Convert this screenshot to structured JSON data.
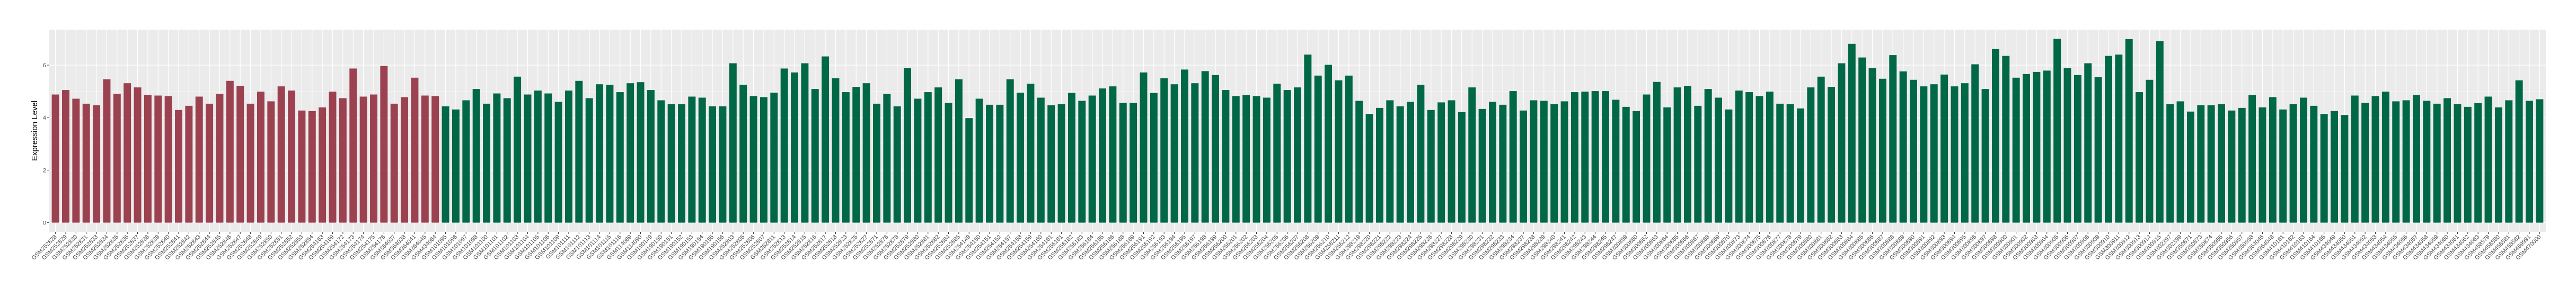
{
  "chart_data": {
    "type": "bar",
    "title": "",
    "xlabel": "",
    "ylabel": "Expression Level",
    "ylim": [
      -0.35,
      7.35
    ],
    "yticks": [
      0,
      2,
      4,
      6
    ],
    "grid": true,
    "legend": "none",
    "colors": [
      "#9C4150",
      "#006846"
    ],
    "panel_background": "#EBEBEB",
    "categories": [
      "GSM252828",
      "GSM252829",
      "GSM252830",
      "GSM252831",
      "GSM252833",
      "GSM252834",
      "GSM252835",
      "GSM252836",
      "GSM252837",
      "GSM252838",
      "GSM252839",
      "GSM252840",
      "GSM252841",
      "GSM252842",
      "GSM252843",
      "GSM252844",
      "GSM252845",
      "GSM252846",
      "GSM252847",
      "GSM252848",
      "GSM252849",
      "GSM252850",
      "GSM252851",
      "GSM252852",
      "GSM252853",
      "GSM252854",
      "GSM254163",
      "GSM254169",
      "GSM254172",
      "GSM254173",
      "GSM254174",
      "GSM254175",
      "GSM254176",
      "GSM364037",
      "GSM364038",
      "GSM364041",
      "GSM364045",
      "GSM434064",
      "GSM101095",
      "GSM101096",
      "GSM101097",
      "GSM101098",
      "GSM101100",
      "GSM101101",
      "GSM101102",
      "GSM101103",
      "GSM101104",
      "GSM101105",
      "GSM101106",
      "GSM101109",
      "GSM101111",
      "GSM101112",
      "GSM101113",
      "GSM101114",
      "GSM101115",
      "GSM101116",
      "GSM114089",
      "GSM114090",
      "GSM190149",
      "GSM190150",
      "GSM190151",
      "GSM190152",
      "GSM190153",
      "GSM190154",
      "GSM190155",
      "GSM190156",
      "GSM252803",
      "GSM252805",
      "GSM252806",
      "GSM252807",
      "GSM252811",
      "GSM252813",
      "GSM252814",
      "GSM252815",
      "GSM252816",
      "GSM252817",
      "GSM252818",
      "GSM252823",
      "GSM252825",
      "GSM252827",
      "GSM252871",
      "GSM252876",
      "GSM252878",
      "GSM252879",
      "GSM252880",
      "GSM252881",
      "GSM252882",
      "GSM252884",
      "GSM252885",
      "GSM254149",
      "GSM254150",
      "GSM254151",
      "GSM254152",
      "GSM254157",
      "GSM254158",
      "GSM254159",
      "GSM254160",
      "GSM254161",
      "GSM256181",
      "GSM256182",
      "GSM256183",
      "GSM256184",
      "GSM256185",
      "GSM256186",
      "GSM256188",
      "GSM256189",
      "GSM256191",
      "GSM256192",
      "GSM256193",
      "GSM256194",
      "GSM256195",
      "GSM256197",
      "GSM256198",
      "GSM256199",
      "GSM256200",
      "GSM256201",
      "GSM256202",
      "GSM256203",
      "GSM256204",
      "GSM256205",
      "GSM256206",
      "GSM256207",
      "GSM256208",
      "GSM256209",
      "GSM256210",
      "GSM256211",
      "GSM256212",
      "GSM298219",
      "GSM298220",
      "GSM298221",
      "GSM298222",
      "GSM298223",
      "GSM298224",
      "GSM298225",
      "GSM298226",
      "GSM298227",
      "GSM298228",
      "GSM298229",
      "GSM298230",
      "GSM298231",
      "GSM298232",
      "GSM298233",
      "GSM298234",
      "GSM298237",
      "GSM298238",
      "GSM298239",
      "GSM298240",
      "GSM298241",
      "GSM298242",
      "GSM298243",
      "GSM298244",
      "GSM298245",
      "GSM298247",
      "GSM300859",
      "GSM300860",
      "GSM300862",
      "GSM300863",
      "GSM300864",
      "GSM300865",
      "GSM300866",
      "GSM300867",
      "GSM300868",
      "GSM300869",
      "GSM300870",
      "GSM300873",
      "GSM300874",
      "GSM300875",
      "GSM300876",
      "GSM300877",
      "GSM300878",
      "GSM300879",
      "GSM300880",
      "GSM300881",
      "GSM300882",
      "GSM300883",
      "GSM300884",
      "GSM300885",
      "GSM300886",
      "GSM300887",
      "GSM300888",
      "GSM300889",
      "GSM300890",
      "GSM300891",
      "GSM300892",
      "GSM300893",
      "GSM300894",
      "GSM300895",
      "GSM300896",
      "GSM300897",
      "GSM300898",
      "GSM300900",
      "GSM300901",
      "GSM300902",
      "GSM300903",
      "GSM300904",
      "GSM300905",
      "GSM300906",
      "GSM300907",
      "GSM300908",
      "GSM300909",
      "GSM300910",
      "GSM300911",
      "GSM300912",
      "GSM300913",
      "GSM300914",
      "GSM300915",
      "GSM302397",
      "GSM302399",
      "GSM350871",
      "GSM350873",
      "GSM350874",
      "GSM350955",
      "GSM350956",
      "GSM350957",
      "GSM350958",
      "GSM364046",
      "GSM364048",
      "GSM410161",
      "GSM410162",
      "GSM410163",
      "GSM410164",
      "GSM410165",
      "GSM434049",
      "GSM434050",
      "GSM434051",
      "GSM434052",
      "GSM434053",
      "GSM434054",
      "GSM434055",
      "GSM434056",
      "GSM434057",
      "GSM434058",
      "GSM434059",
      "GSM434060",
      "GSM434061",
      "GSM434062",
      "GSM434063",
      "GSM458579",
      "GSM458580",
      "GSM458581",
      "GSM458582",
      "GSM469991",
      "GSM470000"
    ],
    "values": [
      4.88,
      5.05,
      4.72,
      4.53,
      4.47,
      5.46,
      4.9,
      5.31,
      5.15,
      4.86,
      4.84,
      4.82,
      4.29,
      4.45,
      4.8,
      4.53,
      4.9,
      5.4,
      5.21,
      4.53,
      4.99,
      4.62,
      5.19,
      5.03,
      4.27,
      4.25,
      4.39,
      4.99,
      4.74,
      5.87,
      4.8,
      4.88,
      5.97,
      4.53,
      4.78,
      5.52,
      4.84,
      4.82,
      4.43,
      4.31,
      4.66,
      5.09,
      4.53,
      4.92,
      4.74,
      5.56,
      4.88,
      5.03,
      4.92,
      4.6,
      5.03,
      5.4,
      4.74,
      5.27,
      5.25,
      4.97,
      5.31,
      5.35,
      5.05,
      4.66,
      4.51,
      4.51,
      4.8,
      4.76,
      4.43,
      4.43,
      6.07,
      5.25,
      4.82,
      4.78,
      4.95,
      5.87,
      5.72,
      6.07,
      5.09,
      6.33,
      5.5,
      4.97,
      5.17,
      5.31,
      4.53,
      4.9,
      4.43,
      5.89,
      4.72,
      4.97,
      5.15,
      4.56,
      5.46,
      3.98,
      4.72,
      4.49,
      4.49,
      5.46,
      4.95,
      5.29,
      4.76,
      4.47,
      4.51,
      4.94,
      4.64,
      4.84,
      5.11,
      5.19,
      4.56,
      4.56,
      5.72,
      4.94,
      5.5,
      5.27,
      5.83,
      5.31,
      5.77,
      5.62,
      5.05,
      4.82,
      4.86,
      4.82,
      4.76,
      5.29,
      5.05,
      5.15,
      6.4,
      5.6,
      6.01,
      5.42,
      5.6,
      4.64,
      4.14,
      4.37,
      4.66,
      4.43,
      4.6,
      5.25,
      4.29,
      4.58,
      4.66,
      4.21,
      5.15,
      4.33,
      4.6,
      4.49,
      5.01,
      4.27,
      4.66,
      4.64,
      4.51,
      4.62,
      4.97,
      4.99,
      5.01,
      5.01,
      4.68,
      4.41,
      4.25,
      4.88,
      5.36,
      4.39,
      5.15,
      5.21,
      4.45,
      5.09,
      4.76,
      4.31,
      5.03,
      4.97,
      4.82,
      4.99,
      4.53,
      4.51,
      4.35,
      5.15,
      5.56,
      5.17,
      6.07,
      6.81,
      6.29,
      5.89,
      5.48,
      6.38,
      5.76,
      5.44,
      5.19,
      5.27,
      5.64,
      5.19,
      5.31,
      6.03,
      5.09,
      6.61,
      6.35,
      5.52,
      5.66,
      5.74,
      5.79,
      7.0,
      5.89,
      5.62,
      6.07,
      5.54,
      6.35,
      6.4,
      6.99,
      4.97,
      5.44,
      6.91,
      4.51,
      4.62,
      4.23,
      4.47,
      4.47,
      4.51,
      4.27,
      4.37,
      4.86,
      4.39,
      4.78,
      4.31,
      4.51,
      4.76,
      4.45,
      4.14,
      4.25,
      4.1,
      4.84,
      4.56,
      4.82,
      4.99,
      4.62,
      4.66,
      4.86,
      4.64,
      4.53,
      4.74,
      4.51,
      4.41,
      4.55,
      4.8,
      4.39,
      4.66,
      5.42,
      4.64,
      4.7
    ],
    "group_of_bar": "first 38 bars use colors[0], remaining bars use colors[1]",
    "group_sizes": [
      38,
      205
    ]
  }
}
